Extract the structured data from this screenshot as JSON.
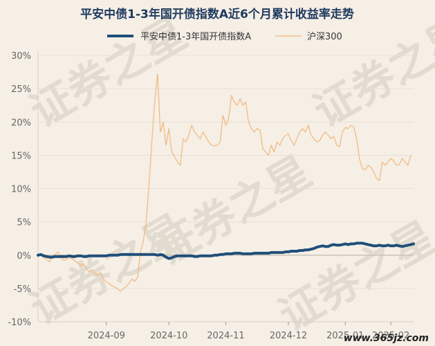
{
  "chart_data": {
    "type": "line",
    "title": "平安中债1-3年国开债指数A近6个月累计收益率走势",
    "ylim": [
      -10,
      30
    ],
    "yticks": [
      "-10%",
      "-5%",
      "0%",
      "5%",
      "10%",
      "15%",
      "20%",
      "25%",
      "30%"
    ],
    "ytick_values": [
      -10,
      -5,
      0,
      5,
      10,
      15,
      20,
      25,
      30
    ],
    "xticks": [
      "2024-09",
      "2024-10",
      "2024-11",
      "2024-12",
      "2025-01",
      "2025-02"
    ],
    "xtick_positions": [
      24,
      46,
      66,
      88,
      108,
      124
    ],
    "grid": "horizontal",
    "legend_position": "top",
    "series": [
      {
        "name": "平安中债1-3年国开债指数A",
        "color": "#1f4e79",
        "values": [
          0.0,
          0.1,
          -0.1,
          -0.2,
          -0.3,
          -0.3,
          -0.2,
          -0.2,
          -0.2,
          -0.2,
          -0.2,
          -0.1,
          -0.2,
          -0.2,
          -0.1,
          -0.1,
          -0.2,
          -0.2,
          -0.1,
          -0.1,
          -0.1,
          -0.1,
          -0.1,
          -0.1,
          -0.1,
          0.0,
          0.0,
          0.0,
          0.0,
          0.1,
          0.1,
          0.1,
          0.1,
          0.1,
          0.1,
          0.1,
          0.1,
          0.1,
          0.1,
          0.1,
          0.1,
          0.1,
          0.0,
          0.1,
          0.0,
          -0.3,
          -0.5,
          -0.4,
          -0.2,
          -0.1,
          -0.1,
          -0.1,
          -0.1,
          -0.1,
          -0.1,
          -0.2,
          -0.2,
          -0.1,
          -0.1,
          -0.1,
          -0.1,
          -0.1,
          0.0,
          0.0,
          0.1,
          0.1,
          0.2,
          0.2,
          0.2,
          0.3,
          0.3,
          0.3,
          0.2,
          0.2,
          0.2,
          0.2,
          0.3,
          0.3,
          0.3,
          0.3,
          0.3,
          0.3,
          0.4,
          0.4,
          0.4,
          0.4,
          0.4,
          0.5,
          0.5,
          0.6,
          0.6,
          0.6,
          0.7,
          0.7,
          0.8,
          0.8,
          0.9,
          1.0,
          1.2,
          1.3,
          1.4,
          1.3,
          1.3,
          1.5,
          1.6,
          1.5,
          1.5,
          1.6,
          1.7,
          1.6,
          1.7,
          1.7,
          1.8,
          1.8,
          1.8,
          1.7,
          1.6,
          1.5,
          1.4,
          1.4,
          1.5,
          1.4,
          1.4,
          1.5,
          1.4,
          1.4,
          1.5,
          1.4,
          1.3,
          1.4,
          1.5,
          1.6,
          1.7
        ]
      },
      {
        "name": "沪深300",
        "color": "#f2b77a",
        "values": [
          0.0,
          0.1,
          -0.4,
          -0.6,
          -1.0,
          -0.2,
          0.1,
          0.5,
          -0.3,
          -0.8,
          -0.6,
          -0.4,
          -0.5,
          -0.9,
          -1.2,
          -1.6,
          -1.3,
          -2.0,
          -2.5,
          -2.2,
          -2.8,
          -3.0,
          -2.6,
          -3.6,
          -4.0,
          -4.3,
          -4.6,
          -4.8,
          -5.1,
          -5.4,
          -5.0,
          -4.7,
          -4.2,
          -3.6,
          -3.9,
          -3.3,
          0.5,
          2.0,
          5.0,
          10.5,
          17.0,
          23.0,
          27.2,
          18.5,
          20.0,
          16.5,
          19.0,
          15.5,
          14.8,
          14.0,
          13.5,
          17.5,
          17.0,
          18.0,
          19.5,
          18.5,
          18.0,
          17.5,
          18.5,
          17.8,
          17.0,
          16.5,
          16.4,
          16.5,
          17.0,
          21.0,
          19.5,
          20.5,
          24.0,
          23.0,
          22.5,
          23.5,
          22.5,
          23.0,
          20.0,
          19.0,
          18.5,
          19.0,
          18.8,
          16.0,
          15.5,
          15.0,
          16.5,
          15.5,
          17.0,
          16.5,
          17.5,
          18.0,
          18.2,
          17.2,
          16.5,
          17.5,
          18.5,
          19.0,
          18.5,
          19.5,
          18.0,
          17.5,
          17.0,
          17.2,
          18.0,
          18.5,
          18.0,
          17.5,
          17.8,
          16.5,
          16.3,
          18.5,
          19.2,
          19.0,
          19.5,
          19.2,
          17.5,
          14.5,
          13.0,
          12.8,
          13.5,
          13.2,
          12.5,
          11.5,
          11.2,
          14.0,
          13.5,
          14.0,
          14.5,
          14.2,
          13.5,
          13.6,
          14.5,
          14.0,
          13.5,
          15.0
        ]
      }
    ]
  },
  "watermark": {
    "text": "证券之星",
    "site": "www.365jz.com"
  }
}
